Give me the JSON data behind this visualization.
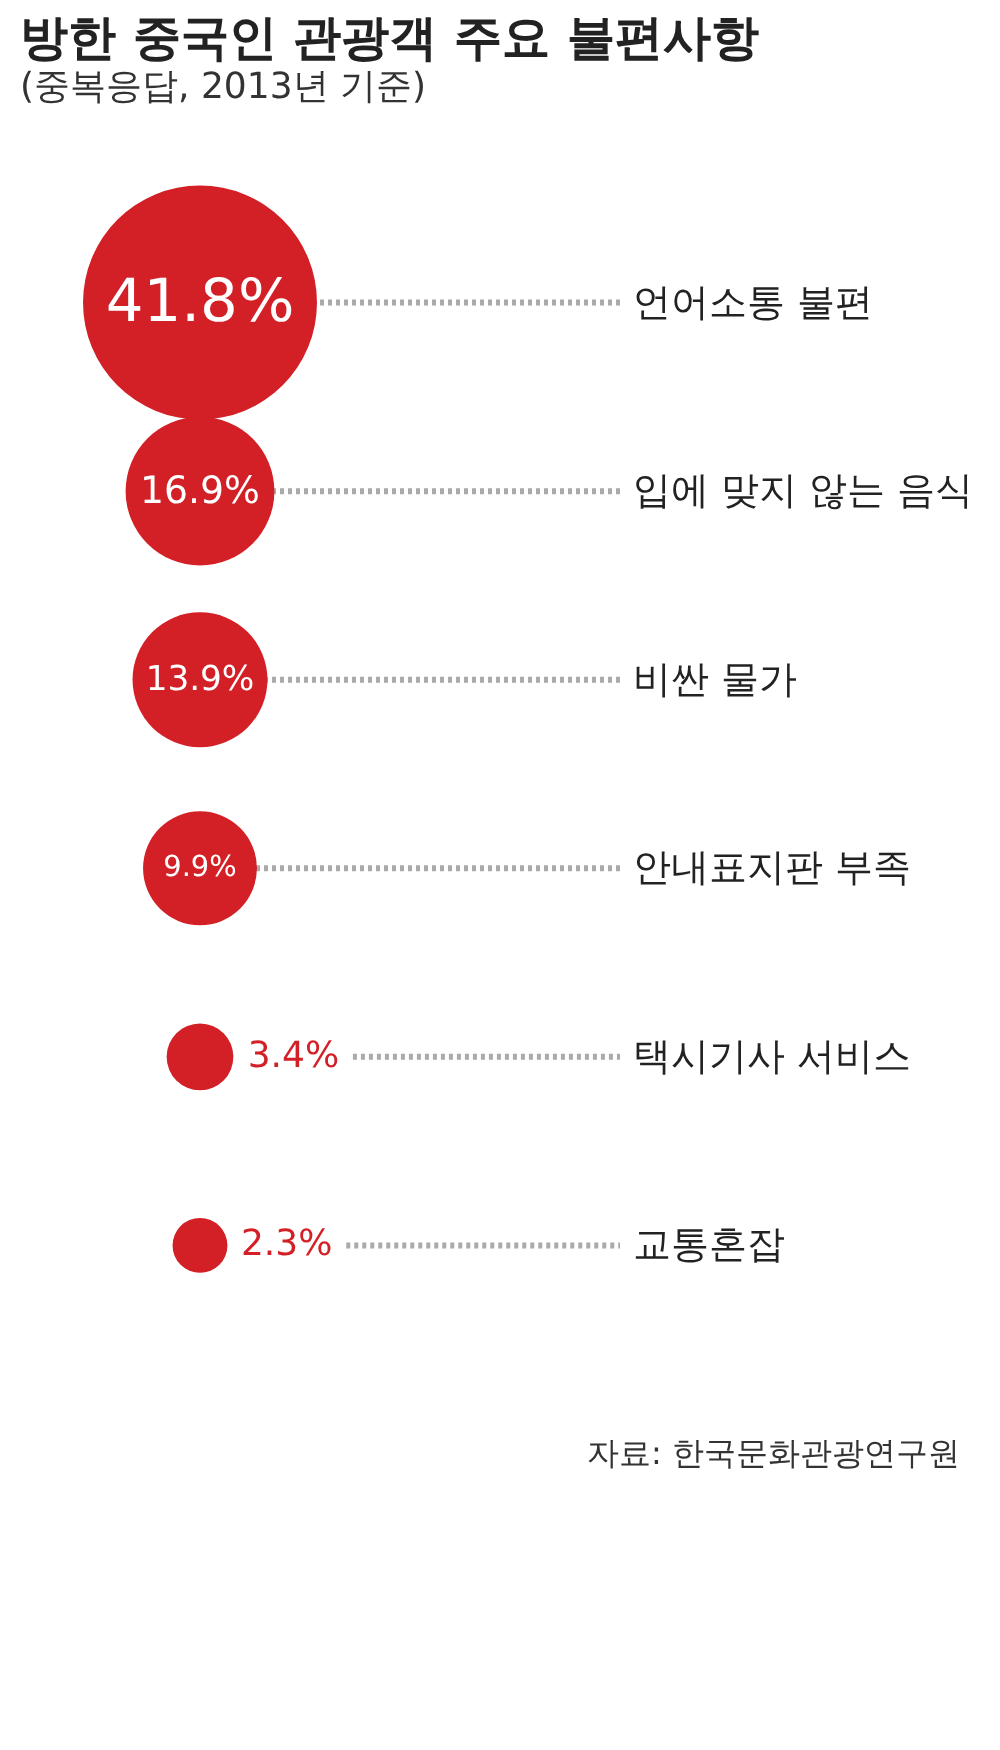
{
  "chart_data": {
    "type": "other",
    "title": "방한 중국인 관광객 주요 불편사항",
    "subtitle": "(중복응답, 2013년 기준)",
    "categories": [
      "언어소통 불편",
      "입에 맞지 않는 음식",
      "비싼 물가",
      "안내표지판 부족",
      "택시기사 서비스",
      "교통혼잡"
    ],
    "values": [
      41.8,
      16.9,
      13.9,
      9.9,
      3.4,
      2.3
    ],
    "value_labels": [
      "41.8%",
      "16.9%",
      "13.9%",
      "9.9%",
      "3.4%",
      "2.3%"
    ],
    "color": "#d31f26",
    "annotations": [
      "자료: 한국문화관광연구원"
    ]
  }
}
